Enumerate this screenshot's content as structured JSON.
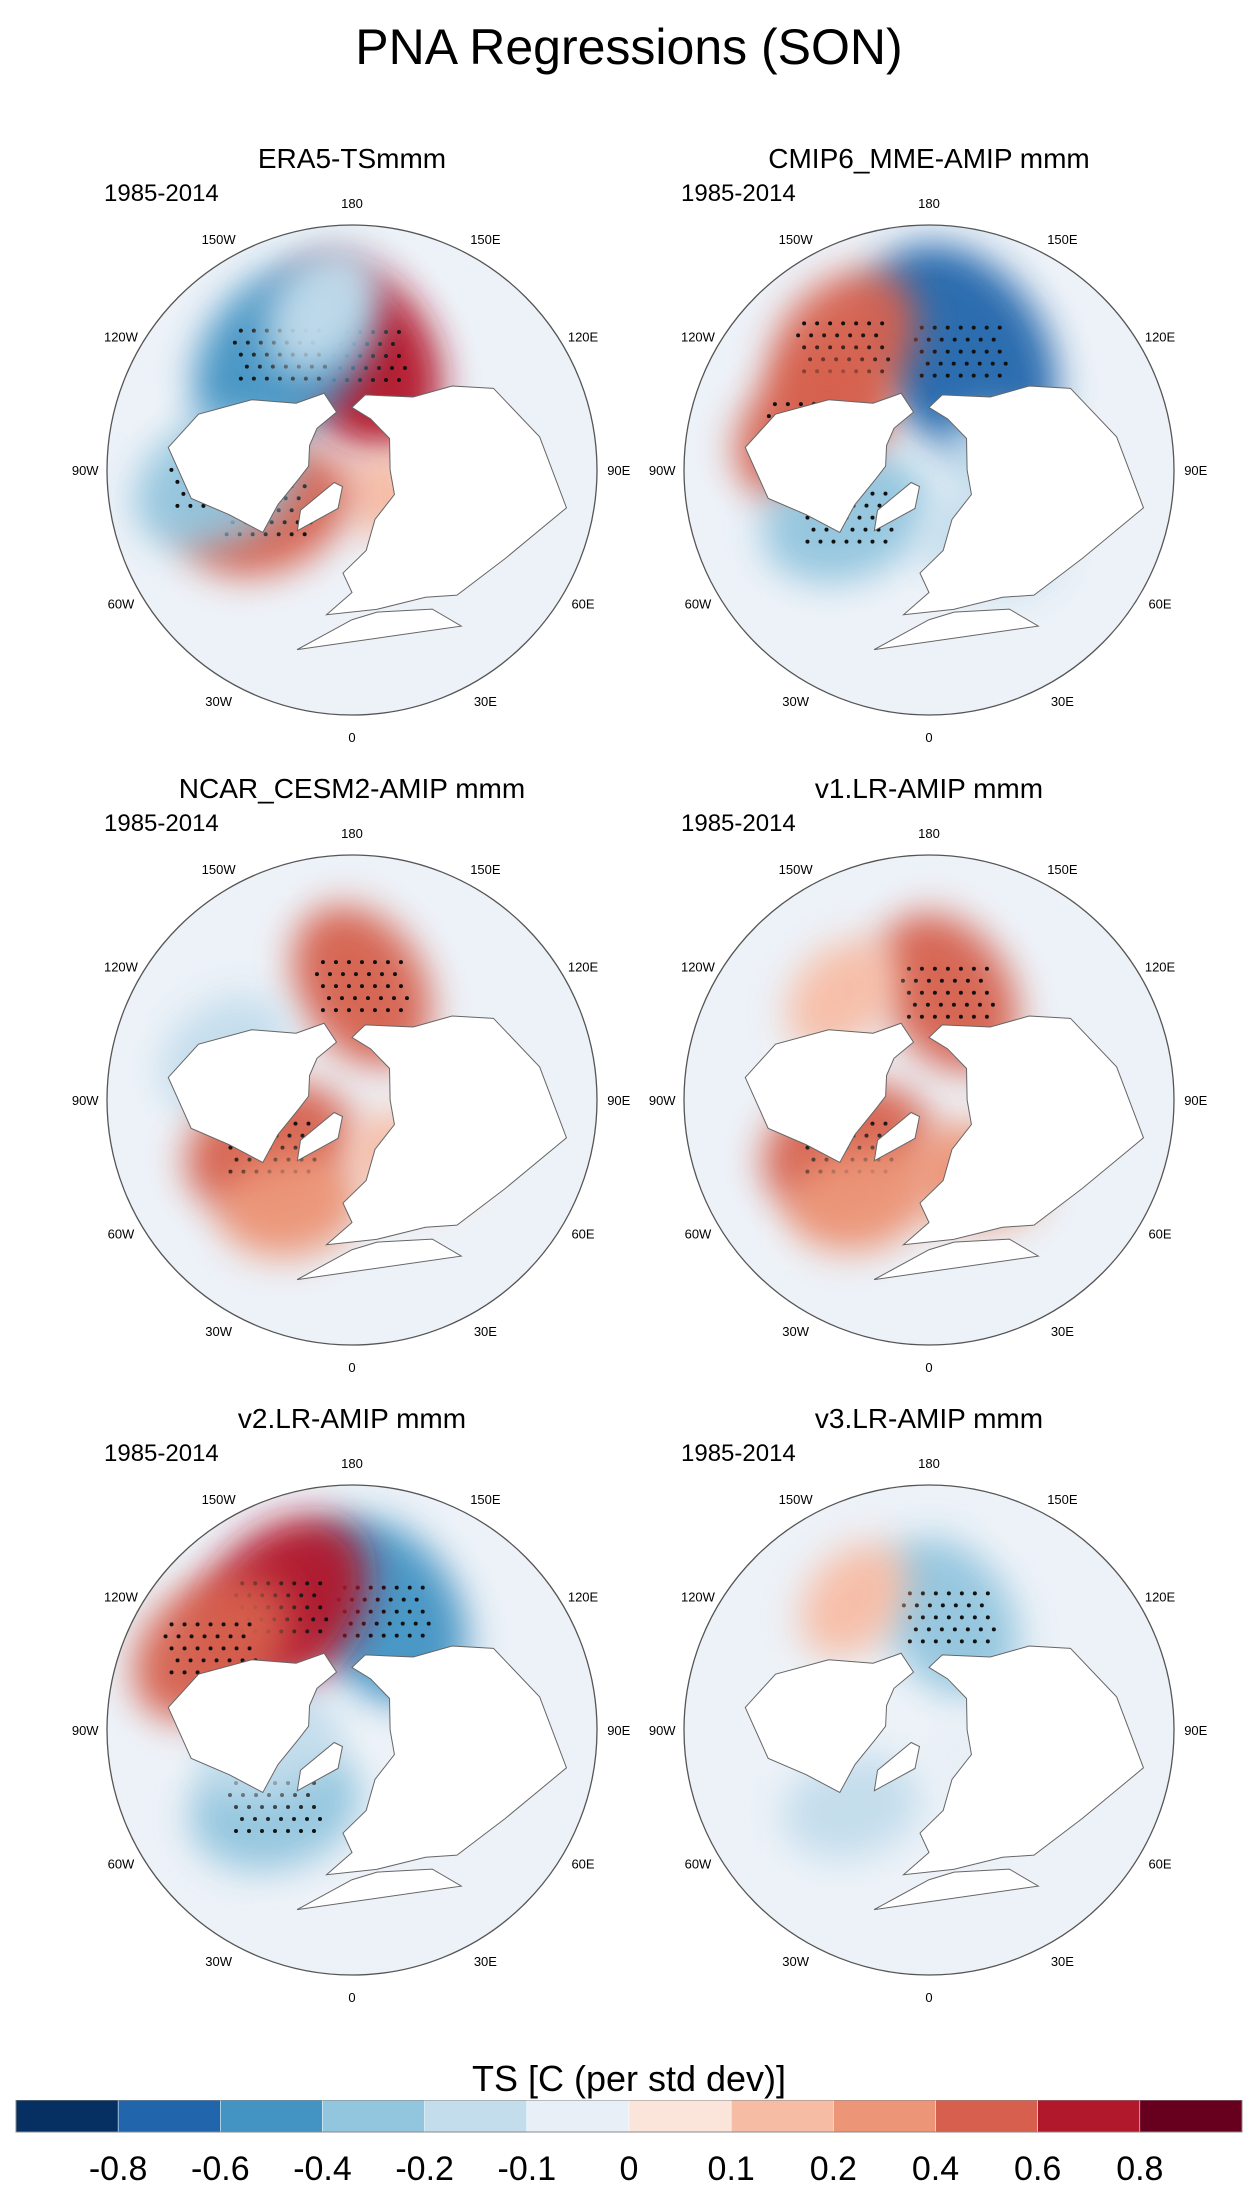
{
  "title": "PNA Regressions (SON)",
  "period": "1985-2014",
  "lon_labels": [
    "180",
    "150E",
    "120E",
    "90E",
    "60E",
    "30E",
    "0",
    "30W",
    "60W",
    "90W",
    "120W",
    "150W"
  ],
  "chart_data": {
    "type": "heatmap",
    "projection": "north polar stereographic",
    "variable": "TS",
    "units": "C (per std dev)",
    "panels": [
      {
        "title": "ERA5-TSmmm",
        "period": "1985-2014",
        "anomalies": [
          {
            "lon": 176,
            "lat": 48,
            "value": 0.6,
            "sign": "warm"
          },
          {
            "lon": -148,
            "lat": 40,
            "value": -0.6,
            "sign": "cool"
          },
          {
            "lon": 60,
            "lat": 68,
            "value": 0.1,
            "sign": "warm"
          },
          {
            "lon": -65,
            "lat": 55,
            "value": 0.4,
            "sign": "warm"
          },
          {
            "lon": -85,
            "lat": 40,
            "value": -0.4,
            "sign": "cool"
          },
          {
            "lon": -170,
            "lat": 30,
            "value": -0.2,
            "sign": "cool"
          }
        ]
      },
      {
        "title": "CMIP6_MME-AMIP  mmm",
        "period": "1985-2014",
        "anomalies": [
          {
            "lon": 165,
            "lat": 45,
            "value": -0.8,
            "sign": "cool"
          },
          {
            "lon": -145,
            "lat": 35,
            "value": 0.4,
            "sign": "warm"
          },
          {
            "lon": -110,
            "lat": 45,
            "value": 0.4,
            "sign": "warm"
          },
          {
            "lon": -60,
            "lat": 55,
            "value": -0.4,
            "sign": "cool"
          },
          {
            "lon": 40,
            "lat": 55,
            "value": -0.2,
            "sign": "cool"
          },
          {
            "lon": 90,
            "lat": 60,
            "value": -0.2,
            "sign": "cool"
          }
        ]
      },
      {
        "title": "NCAR_CESM2-AMIP  mmm",
        "period": "1985-2014",
        "anomalies": [
          {
            "lon": 175,
            "lat": 48,
            "value": 0.4,
            "sign": "warm"
          },
          {
            "lon": -110,
            "lat": 40,
            "value": -0.2,
            "sign": "cool"
          },
          {
            "lon": -60,
            "lat": 55,
            "value": 0.4,
            "sign": "warm"
          },
          {
            "lon": -30,
            "lat": 45,
            "value": 0.2,
            "sign": "warm"
          },
          {
            "lon": 45,
            "lat": 60,
            "value": 0.1,
            "sign": "warm"
          }
        ]
      },
      {
        "title": "v1.LR-AMIP  mmm",
        "period": "1985-2014",
        "anomalies": [
          {
            "lon": 170,
            "lat": 50,
            "value": 0.4,
            "sign": "warm"
          },
          {
            "lon": -140,
            "lat": 40,
            "value": 0.1,
            "sign": "warm"
          },
          {
            "lon": -60,
            "lat": 55,
            "value": 0.4,
            "sign": "warm"
          },
          {
            "lon": -35,
            "lat": 45,
            "value": 0.2,
            "sign": "warm"
          },
          {
            "lon": 30,
            "lat": 58,
            "value": 0.2,
            "sign": "warm"
          }
        ]
      },
      {
        "title": "v2.LR-AMIP  mmm",
        "period": "1985-2014",
        "anomalies": [
          {
            "lon": 165,
            "lat": 45,
            "value": -0.6,
            "sign": "cool"
          },
          {
            "lon": -150,
            "lat": 38,
            "value": 0.6,
            "sign": "warm"
          },
          {
            "lon": -120,
            "lat": 30,
            "value": 0.4,
            "sign": "warm"
          },
          {
            "lon": -45,
            "lat": 50,
            "value": -0.4,
            "sign": "cool"
          },
          {
            "lon": -80,
            "lat": 60,
            "value": -0.2,
            "sign": "cool"
          }
        ]
      },
      {
        "title": "v3.LR-AMIP  mmm",
        "period": "1985-2014",
        "anomalies": [
          {
            "lon": 170,
            "lat": 48,
            "value": -0.4,
            "sign": "cool"
          },
          {
            "lon": -150,
            "lat": 35,
            "value": 0.1,
            "sign": "warm"
          },
          {
            "lon": -45,
            "lat": 50,
            "value": -0.2,
            "sign": "cool"
          },
          {
            "lon": 60,
            "lat": 65,
            "value": -0.1,
            "sign": "cool"
          }
        ]
      }
    ],
    "colorbar": {
      "title": "TS [C (per std dev)]",
      "levels": [
        "-0.8",
        "-0.6",
        "-0.4",
        "-0.2",
        "-0.1",
        "0",
        "0.1",
        "0.2",
        "0.4",
        "0.6",
        "0.8"
      ],
      "colors": [
        "#053061",
        "#2166ac",
        "#4393c3",
        "#92c5de",
        "#c3ddec",
        "#e8eff6",
        "#fbe4da",
        "#f7bca4",
        "#ec9577",
        "#d6604d",
        "#b2182b",
        "#67001f"
      ]
    }
  }
}
